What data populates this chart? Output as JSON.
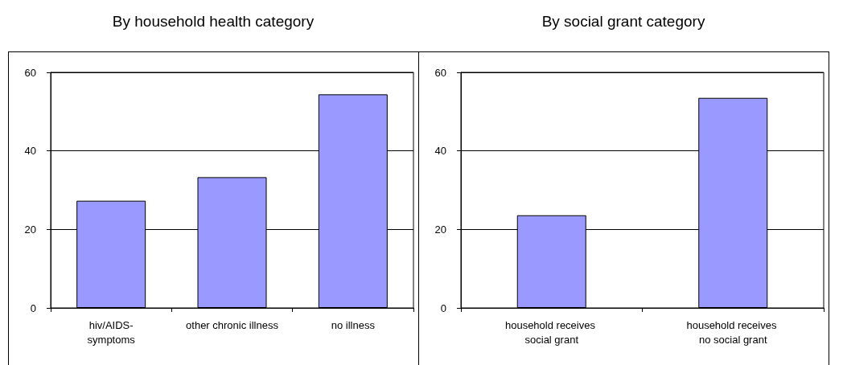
{
  "chart_data": [
    {
      "type": "bar",
      "title": "By household health category",
      "categories": [
        "hiv/AIDS-symptoms",
        "other chronic illness",
        "no illness"
      ],
      "values": [
        27.3,
        33.3,
        54.4
      ],
      "color": "#9999ff",
      "ylim": [
        0,
        60
      ],
      "yticks": [
        0,
        20,
        40,
        60
      ],
      "grid": "y"
    },
    {
      "type": "bar",
      "title": "By social grant category",
      "categories": [
        "household receives social grant",
        "household receives no social grant"
      ],
      "values": [
        23.6,
        53.5
      ],
      "color": "#9999ff",
      "ylim": [
        0,
        60
      ],
      "yticks": [
        0,
        20,
        40,
        60
      ],
      "grid": "y"
    }
  ]
}
